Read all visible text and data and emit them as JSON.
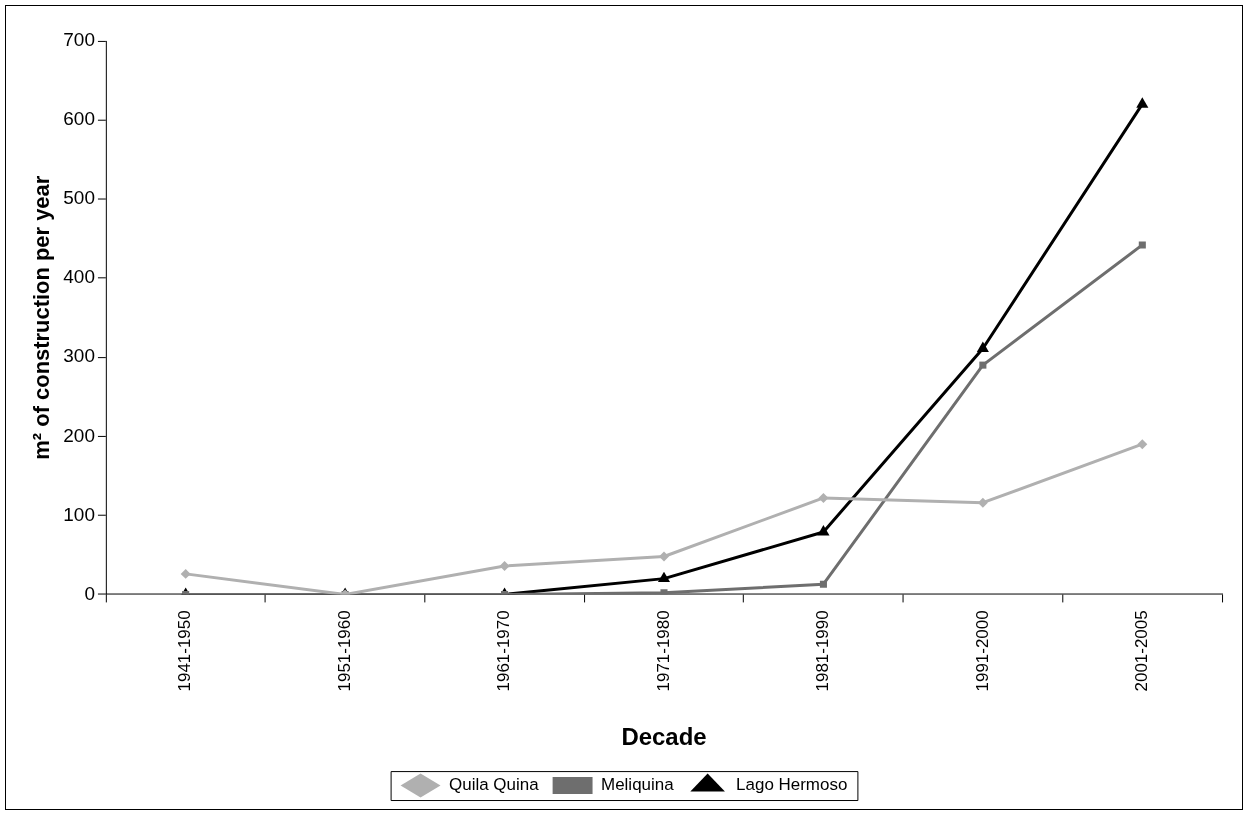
{
  "chart_data": {
    "type": "line",
    "xlabel": "Decade",
    "ylabel": "m² of construction per year",
    "categories": [
      "1941-1950",
      "1951-1960",
      "1961-1970",
      "1971-1980",
      "1981-1990",
      "1991-2000",
      "2001-2005"
    ],
    "series": [
      {
        "name": "Quila Quina",
        "color": "#b0b0b0",
        "marker": "diamond",
        "values": [
          26,
          0,
          36,
          48,
          122,
          116,
          190
        ]
      },
      {
        "name": "Meliquina",
        "color": "#6e6e6e",
        "marker": "square",
        "values": [
          0,
          0,
          0,
          2,
          13,
          290,
          442
        ]
      },
      {
        "name": "Lago Hermoso",
        "color": "#000000",
        "marker": "triangle",
        "values": [
          0,
          0,
          0,
          20,
          79,
          311,
          620
        ]
      }
    ],
    "ylim": [
      0,
      700
    ],
    "yticks": [
      0,
      100,
      200,
      300,
      400,
      500,
      600,
      700
    ],
    "grid": false,
    "legend": "bottom",
    "line_style": "solid"
  }
}
